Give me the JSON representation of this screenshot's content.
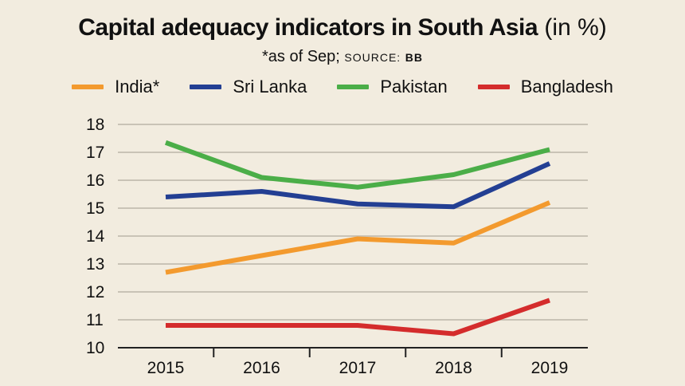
{
  "chart_data": {
    "type": "line",
    "title": "Capital adequacy indicators in South Asia",
    "title_unit": "(in %)",
    "subtitle_note": "*as of Sep;",
    "source_label": "SOURCE:",
    "source_value": "BB",
    "categories": [
      "2015",
      "2016",
      "2017",
      "2018",
      "2019"
    ],
    "ylim": [
      10,
      18
    ],
    "yticks": [
      "10",
      "11",
      "12",
      "13",
      "14",
      "15",
      "16",
      "17",
      "18"
    ],
    "grid": true,
    "legend_position": "top",
    "series": [
      {
        "name": "India*",
        "color": "#f39a2e",
        "values": [
          12.7,
          13.3,
          13.9,
          13.75,
          15.2
        ]
      },
      {
        "name": "Sri Lanka",
        "color": "#233f93",
        "values": [
          15.4,
          15.6,
          15.15,
          15.05,
          16.6
        ]
      },
      {
        "name": "Pakistan",
        "color": "#4bae48",
        "values": [
          17.35,
          16.1,
          15.75,
          16.2,
          17.1
        ]
      },
      {
        "name": "Bangladesh",
        "color": "#d42c2c",
        "values": [
          10.8,
          10.8,
          10.8,
          10.5,
          11.7
        ]
      }
    ]
  }
}
